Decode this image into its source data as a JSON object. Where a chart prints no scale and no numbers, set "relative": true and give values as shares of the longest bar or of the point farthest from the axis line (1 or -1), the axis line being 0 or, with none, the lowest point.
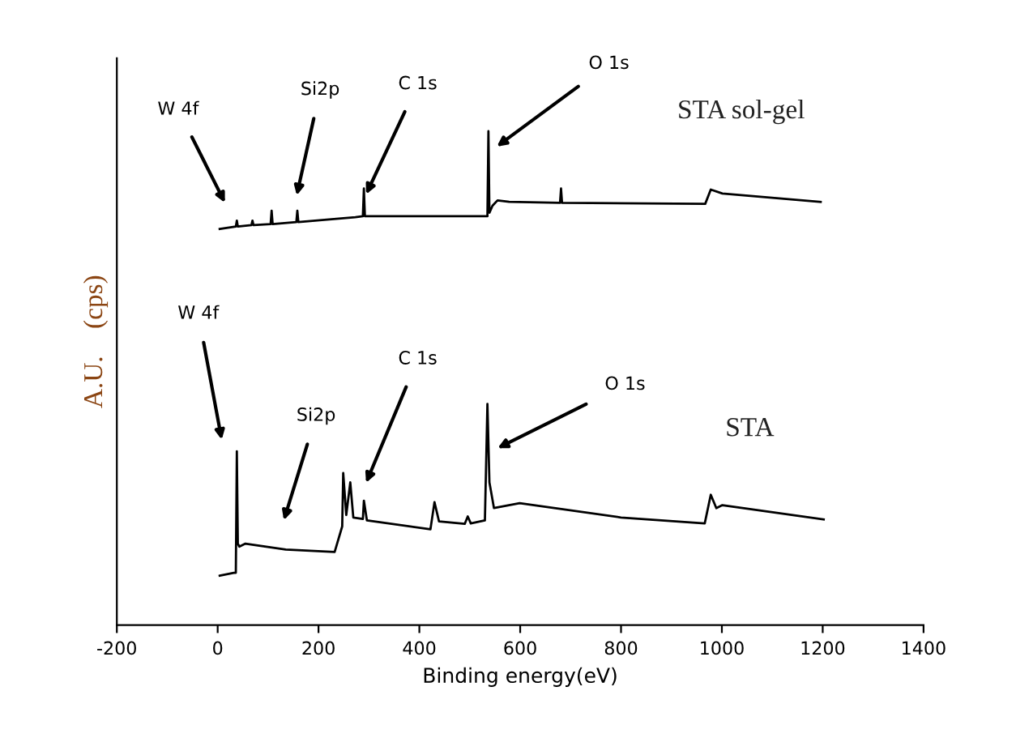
{
  "chart_data": {
    "type": "line",
    "relative": true,
    "xlabel": "Binding energy(eV)",
    "ylabel": "A.U.    (cps)",
    "xlim": [
      -200,
      1400
    ],
    "xticks": [
      -200,
      0,
      200,
      400,
      600,
      800,
      1000,
      1200,
      1400
    ],
    "grid": false,
    "legend": false,
    "marker": "none",
    "line_style": "solid",
    "series": [
      {
        "name": "STA sol-gel",
        "color": "#000000",
        "x": [
          4,
          36,
          38,
          40,
          67,
          69,
          71,
          105,
          107,
          109,
          156,
          158,
          160,
          273,
          288,
          290,
          292,
          525,
          535,
          537,
          539,
          545,
          555,
          578,
          679,
          681,
          683,
          967,
          978,
          1001,
          1196
        ],
        "values": [
          0.802,
          0.807,
          0.819,
          0.807,
          0.81,
          0.819,
          0.81,
          0.812,
          0.839,
          0.812,
          0.816,
          0.839,
          0.816,
          0.826,
          0.828,
          0.884,
          0.828,
          0.828,
          0.828,
          1.0,
          0.835,
          0.849,
          0.86,
          0.857,
          0.855,
          0.884,
          0.855,
          0.853,
          0.882,
          0.874,
          0.857
        ]
      },
      {
        "name": "STA",
        "color": "#000000",
        "x": [
          4,
          32,
          36,
          38,
          40,
          43,
          55,
          135,
          232,
          247,
          249,
          255,
          263,
          269,
          288,
          290,
          296,
          422,
          430,
          439,
          490,
          496,
          502,
          530,
          535,
          539,
          548,
          599,
          800,
          966,
          978,
          989,
          1001,
          1202
        ],
        "values": [
          0.1,
          0.106,
          0.106,
          0.352,
          0.165,
          0.159,
          0.165,
          0.153,
          0.148,
          0.2,
          0.308,
          0.223,
          0.289,
          0.218,
          0.215,
          0.252,
          0.212,
          0.194,
          0.249,
          0.21,
          0.205,
          0.22,
          0.206,
          0.212,
          0.448,
          0.289,
          0.237,
          0.247,
          0.218,
          0.206,
          0.264,
          0.237,
          0.243,
          0.214
        ]
      }
    ],
    "annotations": [
      "W 4f",
      "Si2p",
      "C 1s",
      "O 1s",
      "W 4f",
      "Si2p",
      "C 1s",
      "O 1s"
    ]
  }
}
